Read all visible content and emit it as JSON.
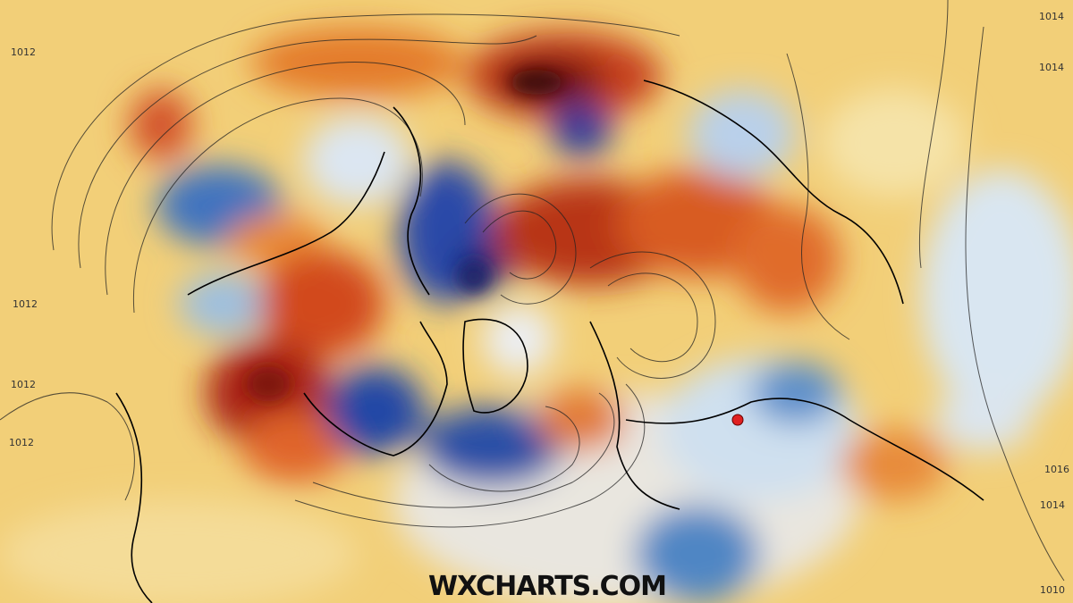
{
  "watermark": "WXCHARTS.COM",
  "isobar_labels": [
    "1012",
    "1012",
    "1012",
    "1012",
    "1014",
    "1014",
    "1016",
    "1014",
    "1010"
  ]
}
